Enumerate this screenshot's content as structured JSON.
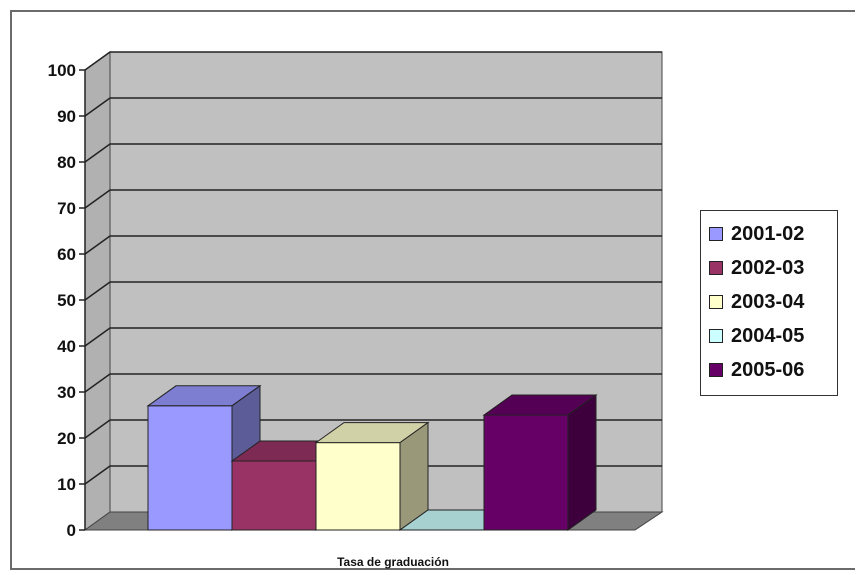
{
  "chart_data": {
    "type": "bar",
    "style": "3d-clustered-column",
    "categories": [
      "Tasa de graduación"
    ],
    "series": [
      {
        "name": "2001-02",
        "values": [
          27
        ],
        "color": "#9999ff"
      },
      {
        "name": "2002-03",
        "values": [
          15
        ],
        "color": "#993366"
      },
      {
        "name": "2003-04",
        "values": [
          19
        ],
        "color": "#ffffcc"
      },
      {
        "name": "2004-05",
        "values": [
          0
        ],
        "color": "#ccffff"
      },
      {
        "name": "2005-06",
        "values": [
          25
        ],
        "color": "#660066"
      }
    ],
    "yticks": [
      "0",
      "10",
      "20",
      "30",
      "40",
      "50",
      "60",
      "70",
      "80",
      "90",
      "100"
    ],
    "ylim": [
      0,
      100
    ],
    "grid": true,
    "legend_position": "right",
    "wall_color": "#c0c0c0",
    "floor_color": "#808080"
  }
}
